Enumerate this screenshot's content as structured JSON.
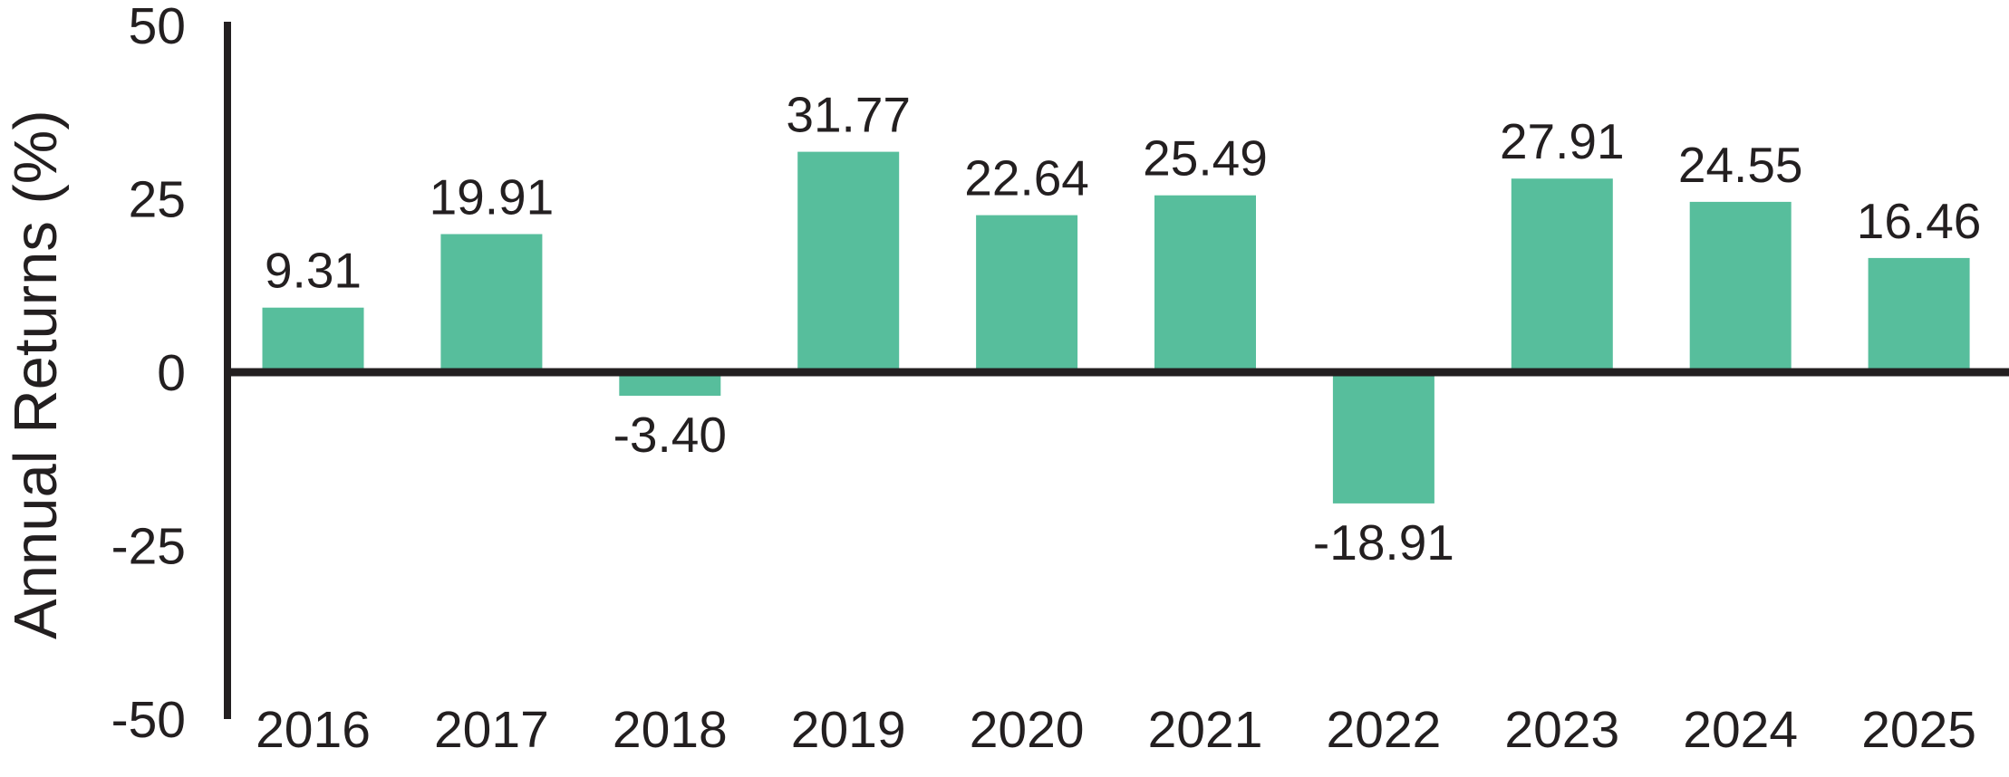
{
  "chart_data": {
    "type": "bar",
    "title": "",
    "xlabel": "",
    "ylabel": "Annual Returns (%)",
    "categories": [
      "2016",
      "2017",
      "2018",
      "2019",
      "2020",
      "2021",
      "2022",
      "2023",
      "2024",
      "2025"
    ],
    "values": [
      9.31,
      19.91,
      -3.4,
      31.77,
      22.64,
      25.49,
      -18.91,
      27.91,
      24.55,
      16.46
    ],
    "value_labels": [
      "9.31",
      "19.91",
      "-3.40",
      "31.77",
      "22.64",
      "25.49",
      "-18.91",
      "27.91",
      "24.55",
      "16.46"
    ],
    "ylim": [
      -50,
      50
    ],
    "yticks": [
      50,
      25,
      0,
      -25,
      -50
    ],
    "ytick_labels": [
      "50",
      "25",
      "0",
      "-25",
      "-50"
    ],
    "grid": false,
    "legend": "none",
    "bar_color": "#57BE9C",
    "axis_color": "#231F20",
    "text_color": "#231F20",
    "background_color": "#FFFFFF"
  }
}
